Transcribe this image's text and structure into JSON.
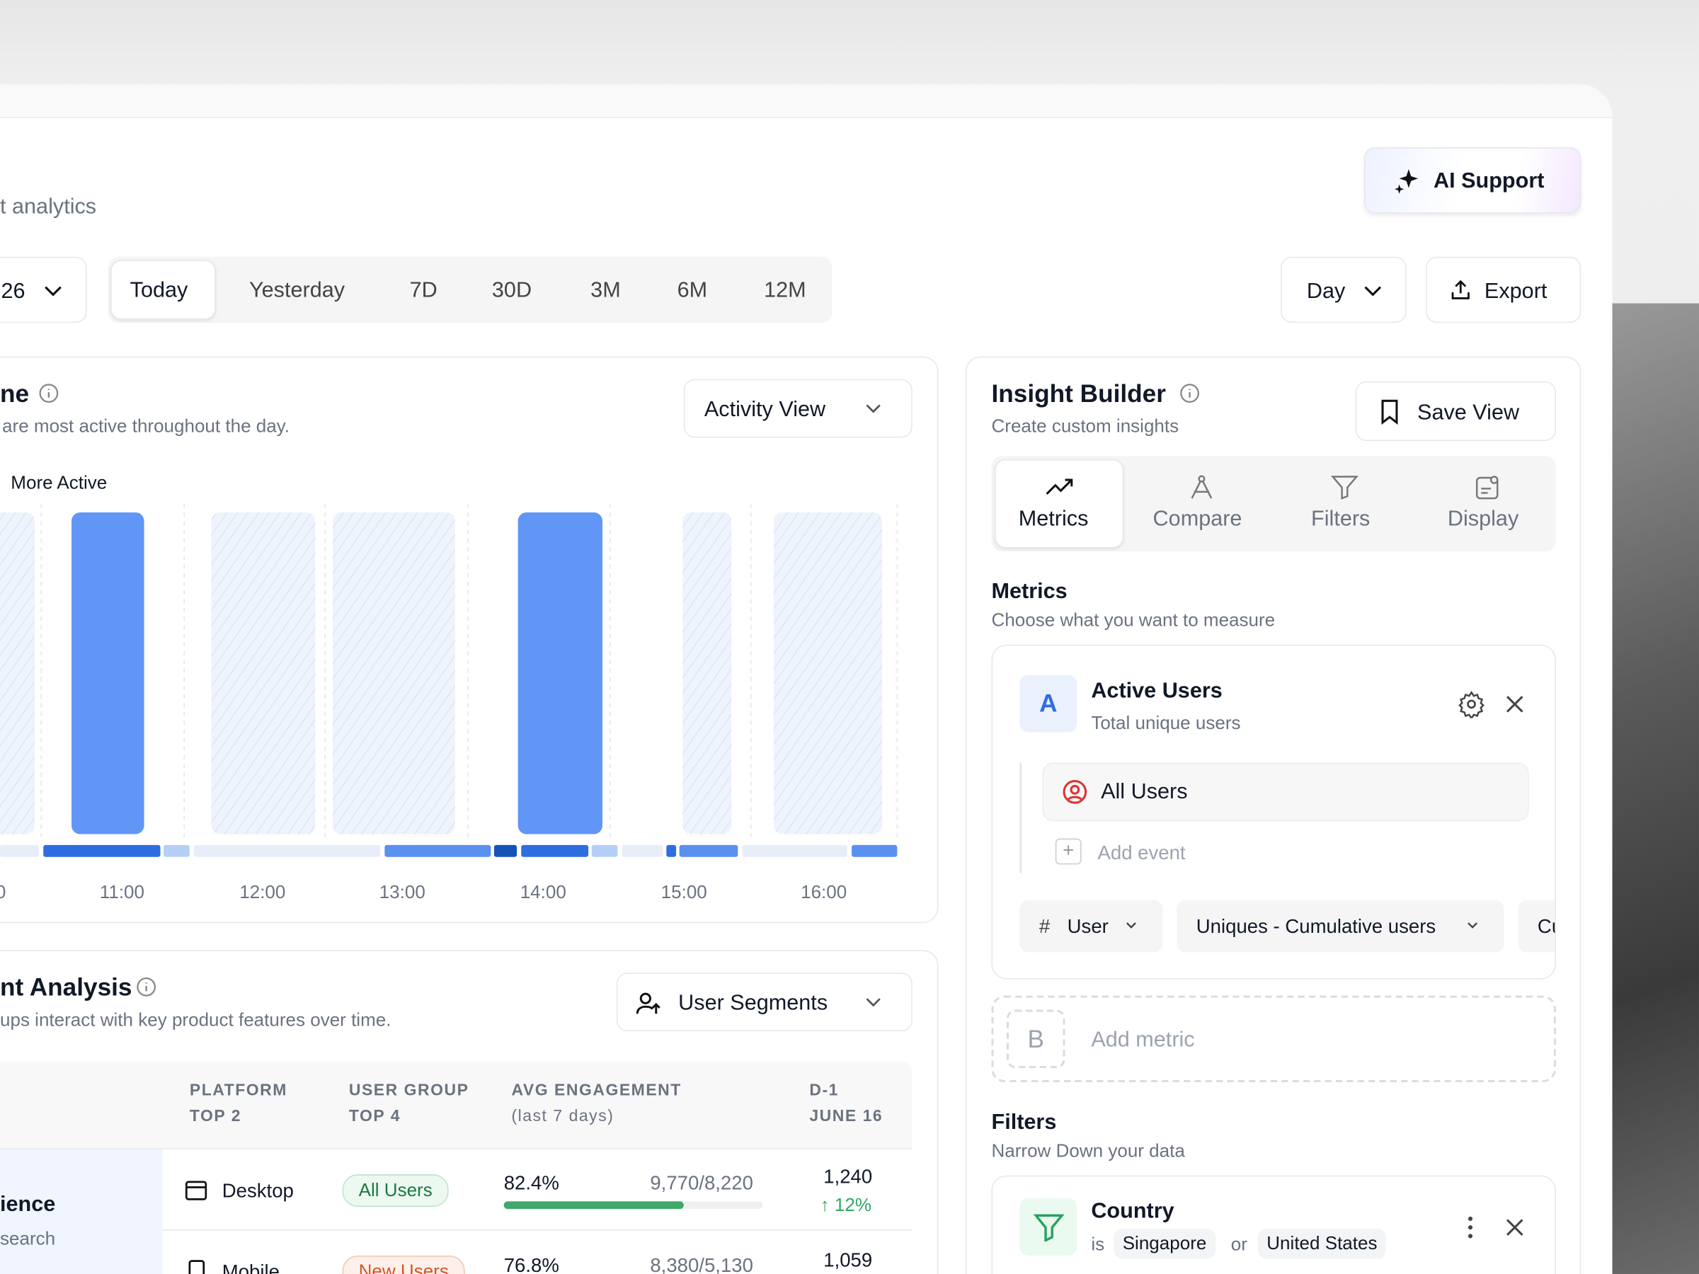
{
  "header": {
    "subtitle": "t analytics",
    "ai_button": "AI Support"
  },
  "toolbar": {
    "date": "26",
    "ranges": [
      "Today",
      "Yesterday",
      "7D",
      "30D",
      "3M",
      "6M",
      "12M"
    ],
    "granularity": "Day",
    "export": "Export"
  },
  "activity_panel": {
    "title": "ne",
    "subtitle": "are most active throughout the day.",
    "view_select": "Activity View",
    "legend": "More Active",
    "time_labels": [
      "0",
      "11:00",
      "12:00",
      "13:00",
      "14:00",
      "15:00",
      "16:00"
    ]
  },
  "analysis_panel": {
    "title": "nt Analysis",
    "subtitle": "ups interact with key product features over time.",
    "segment_select": "User Segments",
    "table": {
      "headers": [
        [
          "PLATFORM",
          "TOP 2"
        ],
        [
          "USER GROUP",
          "TOP 4"
        ],
        [
          "AVG ENGAGEMENT",
          "(last 7 days)"
        ],
        [
          "D-1",
          "JUNE 16"
        ]
      ],
      "rows": [
        {
          "feature": "ience",
          "feature_note": "search",
          "platform": "Desktop",
          "group": "All Users",
          "engagement": "82.4%",
          "ratio": "9,770/8,220",
          "d1": "1,240",
          "change": "12%"
        },
        {
          "platform": "Mobile",
          "group": "New Users",
          "engagement": "76.8%",
          "ratio": "8,380/5,130",
          "d1": "1,059"
        }
      ]
    }
  },
  "insight_builder": {
    "title": "Insight Builder",
    "subtitle": "Create custom insights",
    "save": "Save View",
    "tabs": [
      "Metrics",
      "Compare",
      "Filters",
      "Display"
    ],
    "metrics": {
      "title": "Metrics",
      "subtitle": "Choose what you want to measure",
      "metric_a": {
        "badge": "A",
        "name": "Active Users",
        "desc": "Total unique users",
        "segment": "All Users",
        "add_event": "Add event",
        "chips": [
          "User",
          "Uniques - Cumulative users",
          "Cu"
        ]
      },
      "metric_b": {
        "badge": "B",
        "placeholder": "Add metric"
      }
    },
    "filters": {
      "title": "Filters",
      "subtitle": "Narrow Down your data",
      "filter": {
        "name": "Country",
        "op": "is",
        "values": [
          "Singapore",
          "United States"
        ],
        "joiner": "or"
      }
    }
  }
}
